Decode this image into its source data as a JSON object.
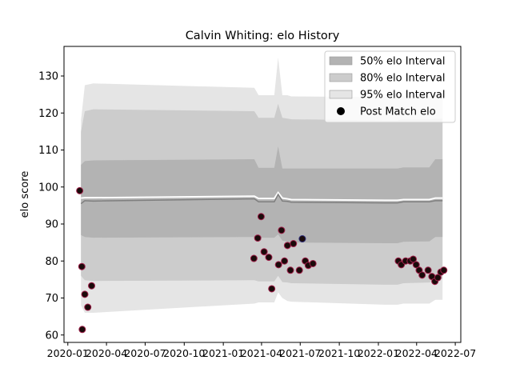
{
  "chart_data": {
    "type": "scatter",
    "title": "Calvin Whiting: elo History",
    "xlabel": "",
    "ylabel": "elo score",
    "xlim": [
      "2019-12-23",
      "2022-07-14"
    ],
    "ylim": [
      58,
      138
    ],
    "x_ticks": [
      "2020-01",
      "2020-04",
      "2020-07",
      "2020-10",
      "2021-01",
      "2021-04",
      "2021-07",
      "2021-10",
      "2022-01",
      "2022-04",
      "2022-07"
    ],
    "y_ticks": [
      60,
      70,
      80,
      90,
      100,
      110,
      120,
      130
    ],
    "grid": false,
    "legend": {
      "placement": "top-right",
      "entries": [
        "50% elo Interval",
        "80% elo Interval",
        "95% elo Interval",
        "Post Match elo"
      ]
    },
    "colors": {
      "band50": "#b3b3b3",
      "band80": "#cccccc",
      "band95": "#e5e5e5",
      "mean_line": "#7f7f7f",
      "median_line": "#ffffff",
      "marker_fill": "#1a0a0a",
      "marker_edge": "#a0204a",
      "marker_edge_alt": "#2b2b7a"
    },
    "bands": {
      "x": [
        "2020-02-01",
        "2020-02-10",
        "2020-03-01",
        "2021-03-15",
        "2021-03-25",
        "2021-05-01",
        "2021-05-10",
        "2021-05-20",
        "2021-06-01",
        "2021-06-10",
        "2022-01-15",
        "2022-02-15",
        "2022-03-01",
        "2022-05-01",
        "2022-05-15",
        "2022-06-01"
      ],
      "p95_upper": [
        118,
        127.5,
        128,
        126.8,
        124.8,
        124.8,
        135,
        124.8,
        124.8,
        124.5,
        124.3,
        124.3,
        124.5,
        124.5,
        124.8,
        124.8
      ],
      "p80_upper": [
        115,
        120.5,
        121,
        120.5,
        118.7,
        118.7,
        122.5,
        118.7,
        118.5,
        118.3,
        118,
        118,
        118.3,
        118.3,
        118.5,
        118.5
      ],
      "p50_upper": [
        106,
        107,
        107.2,
        107.5,
        105.2,
        105.2,
        111,
        105,
        105,
        105,
        105,
        105,
        105.3,
        105.3,
        107.5,
        107.5
      ],
      "p50_lower": [
        87,
        86.5,
        86.3,
        86.5,
        86.3,
        86.3,
        87.2,
        85.5,
        85.2,
        85,
        84.8,
        84.8,
        85.2,
        85.3,
        86.5,
        86.5
      ],
      "p80_lower": [
        76,
        74.8,
        74.6,
        74.8,
        74.5,
        74.5,
        76,
        74.3,
        74.2,
        74,
        73.6,
        73.6,
        74,
        74.2,
        75.2,
        75.2
      ],
      "p95_lower": [
        68,
        66,
        66,
        68.5,
        68.8,
        68.8,
        71.5,
        70,
        69.2,
        69,
        68.2,
        68.2,
        68.5,
        68.5,
        69.5,
        69.5
      ],
      "median": [
        97,
        97.1,
        97.1,
        97.5,
        96.9,
        96.9,
        98.5,
        97,
        96.8,
        96.6,
        96.4,
        96.4,
        96.6,
        96.6,
        97,
        97
      ],
      "mean": [
        95.5,
        96.3,
        96.2,
        96.8,
        96,
        96,
        98,
        96.2,
        96.1,
        95.9,
        95.7,
        95.7,
        96,
        96,
        96.3,
        96.3
      ]
    },
    "series": [
      {
        "name": "Post Match elo",
        "points": [
          {
            "x": "2020-01-29",
            "y": 99
          },
          {
            "x": "2020-02-03",
            "y": 78.5
          },
          {
            "x": "2020-02-04",
            "y": 61.5
          },
          {
            "x": "2020-02-10",
            "y": 71
          },
          {
            "x": "2020-02-17",
            "y": 67.5
          },
          {
            "x": "2020-02-26",
            "y": 73.3
          },
          {
            "x": "2021-03-14",
            "y": 80.7
          },
          {
            "x": "2021-03-23",
            "y": 86.2
          },
          {
            "x": "2021-03-31",
            "y": 92
          },
          {
            "x": "2021-04-07",
            "y": 82.5
          },
          {
            "x": "2021-04-18",
            "y": 81
          },
          {
            "x": "2021-04-25",
            "y": 72.5
          },
          {
            "x": "2021-05-11",
            "y": 79
          },
          {
            "x": "2021-05-18",
            "y": 88.3
          },
          {
            "x": "2021-05-25",
            "y": 80
          },
          {
            "x": "2021-06-01",
            "y": 84.2
          },
          {
            "x": "2021-06-08",
            "y": 77.5
          },
          {
            "x": "2021-06-15",
            "y": 84.7
          },
          {
            "x": "2021-06-29",
            "y": 77.5
          },
          {
            "x": "2021-07-06",
            "y": 86,
            "edge": "alt"
          },
          {
            "x": "2021-07-13",
            "y": 80
          },
          {
            "x": "2021-07-20",
            "y": 78.8
          },
          {
            "x": "2021-07-31",
            "y": 79.3
          },
          {
            "x": "2022-02-17",
            "y": 80
          },
          {
            "x": "2022-02-24",
            "y": 79
          },
          {
            "x": "2022-03-06",
            "y": 80
          },
          {
            "x": "2022-03-17",
            "y": 80
          },
          {
            "x": "2022-03-24",
            "y": 80.5
          },
          {
            "x": "2022-03-31",
            "y": 79
          },
          {
            "x": "2022-04-07",
            "y": 77.5
          },
          {
            "x": "2022-04-14",
            "y": 76.2
          },
          {
            "x": "2022-04-28",
            "y": 77.5
          },
          {
            "x": "2022-05-07",
            "y": 75.8
          },
          {
            "x": "2022-05-14",
            "y": 74.5
          },
          {
            "x": "2022-05-21",
            "y": 75.5
          },
          {
            "x": "2022-05-28",
            "y": 77
          },
          {
            "x": "2022-06-04",
            "y": 77.5
          }
        ]
      }
    ]
  }
}
